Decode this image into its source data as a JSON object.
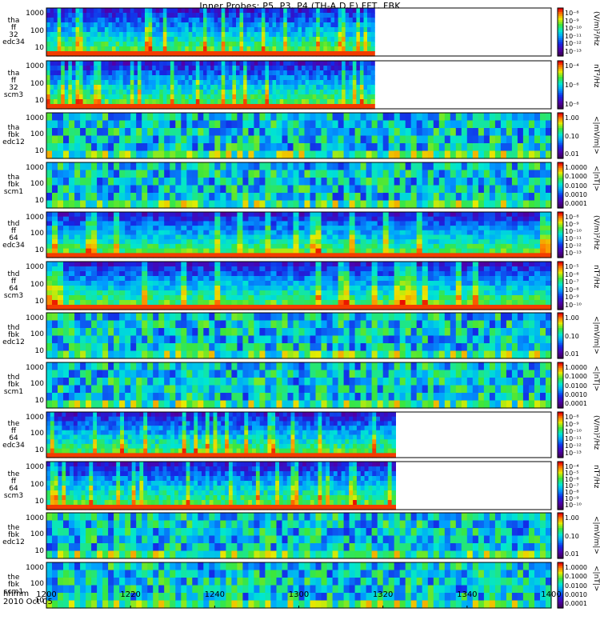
{
  "title": "Inner Probes: P5, P3, P4 (TH-A,D,E) FFT, FBK",
  "x_axis": {
    "label": "hhmm",
    "date": "2010 Oct 05",
    "ticks": [
      "1200",
      "1220",
      "1240",
      "1300",
      "1320",
      "1340",
      "1400"
    ]
  },
  "chart_data": {
    "type": "heatmap",
    "title": "Inner Probes: P5, P3, P4 (TH-A,D,E) FFT, FBK",
    "x_range": [
      "12:00",
      "14:00"
    ],
    "panels": [
      {
        "label": [
          "tha",
          "ff",
          "32",
          "edc34"
        ],
        "y_ticks": [
          "1000",
          "100",
          "10"
        ],
        "y_scale": "log",
        "cbar_ticks": [
          "10⁻⁸",
          "10⁻⁹",
          "10⁻¹⁰",
          "10⁻¹¹",
          "10⁻¹²",
          "10⁻¹³"
        ],
        "unit": "(V/m)²/Hz",
        "data_end": "13:18"
      },
      {
        "label": [
          "tha",
          "ff",
          "32",
          "scm3"
        ],
        "y_ticks": [
          "1000",
          "100",
          "10"
        ],
        "y_scale": "log",
        "cbar_ticks": [
          "10⁻⁴",
          "10⁻⁶",
          "10⁻⁸"
        ],
        "unit": "nT²/Hz",
        "data_end": "13:18"
      },
      {
        "label": [
          "tha",
          "fbk",
          "edc12"
        ],
        "y_ticks": [
          "1000",
          "100",
          "10"
        ],
        "y_scale": "log",
        "cbar_ticks": [
          "1.00",
          "0.10",
          "0.01"
        ],
        "unit": "<|mV/m|>",
        "data_end": "14:00"
      },
      {
        "label": [
          "tha",
          "fbk",
          "scm1"
        ],
        "y_ticks": [
          "1000",
          "100",
          "10"
        ],
        "y_scale": "log",
        "cbar_ticks": [
          "1.0000",
          "0.1000",
          "0.0100",
          "0.0010",
          "0.0001"
        ],
        "unit": "<|nT|>",
        "data_end": "14:00"
      },
      {
        "label": [
          "thd",
          "ff",
          "64",
          "edc34"
        ],
        "y_ticks": [
          "1000",
          "100",
          "10"
        ],
        "y_scale": "log",
        "cbar_ticks": [
          "10⁻⁸",
          "10⁻⁹",
          "10⁻¹⁰",
          "10⁻¹¹",
          "10⁻¹²",
          "10⁻¹³"
        ],
        "unit": "(V/m)²/Hz",
        "data_end": "14:00"
      },
      {
        "label": [
          "thd",
          "ff",
          "64",
          "scm3"
        ],
        "y_ticks": [
          "1000",
          "100",
          "10"
        ],
        "y_scale": "log",
        "cbar_ticks": [
          "10⁻⁵",
          "10⁻⁶",
          "10⁻⁷",
          "10⁻⁸",
          "10⁻⁹",
          "10⁻¹⁰"
        ],
        "unit": "nT²/Hz",
        "data_end": "14:00"
      },
      {
        "label": [
          "thd",
          "fbk",
          "edc12"
        ],
        "y_ticks": [
          "1000",
          "100",
          "10"
        ],
        "y_scale": "log",
        "cbar_ticks": [
          "1.00",
          "0.10",
          "0.01"
        ],
        "unit": "<|mV/m|>",
        "data_end": "14:00"
      },
      {
        "label": [
          "thd",
          "fbk",
          "scm1"
        ],
        "y_ticks": [
          "1000",
          "100",
          "10"
        ],
        "y_scale": "log",
        "cbar_ticks": [
          "1.0000",
          "0.1000",
          "0.0100",
          "0.0010",
          "0.0001"
        ],
        "unit": "<|nT|>",
        "data_end": "14:00"
      },
      {
        "label": [
          "the",
          "ff",
          "64",
          "edc34"
        ],
        "y_ticks": [
          "1000",
          "100",
          "10"
        ],
        "y_scale": "log",
        "cbar_ticks": [
          "10⁻⁸",
          "10⁻⁹",
          "10⁻¹⁰",
          "10⁻¹¹",
          "10⁻¹²",
          "10⁻¹³"
        ],
        "unit": "(V/m)²/Hz",
        "data_end": "13:23"
      },
      {
        "label": [
          "the",
          "ff",
          "64",
          "scm3"
        ],
        "y_ticks": [
          "1000",
          "100",
          "10"
        ],
        "y_scale": "log",
        "cbar_ticks": [
          "10⁻⁴",
          "10⁻⁵",
          "10⁻⁶",
          "10⁻⁷",
          "10⁻⁸",
          "10⁻⁹",
          "10⁻¹⁰"
        ],
        "unit": "nT²/Hz",
        "data_end": "13:23"
      },
      {
        "label": [
          "the",
          "fbk",
          "edc12"
        ],
        "y_ticks": [
          "1000",
          "100",
          "10"
        ],
        "y_scale": "log",
        "cbar_ticks": [
          "1.00",
          "0.10",
          "0.01"
        ],
        "unit": "<|mV/m|>",
        "data_end": "14:00"
      },
      {
        "label": [
          "the",
          "fbk",
          "scm1"
        ],
        "y_ticks": [
          "1000",
          "100",
          "10"
        ],
        "y_scale": "log",
        "cbar_ticks": [
          "1.0000",
          "0.1000",
          "0.0100",
          "0.0010",
          "0.0001"
        ],
        "unit": "<|nT|>",
        "data_end": "14:00"
      }
    ]
  }
}
